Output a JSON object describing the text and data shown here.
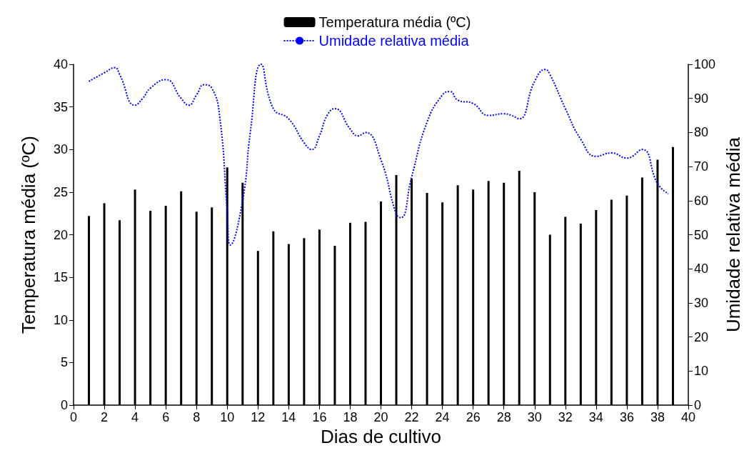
{
  "chart_data": {
    "type": "bar",
    "xlabel": "Dias de cultivo",
    "ylabel": "Temperatura média (ºC)",
    "y2label": "Umidade relativa média",
    "xlim": [
      0,
      40
    ],
    "xticks": [
      0,
      2,
      4,
      6,
      8,
      10,
      12,
      14,
      16,
      18,
      20,
      22,
      24,
      26,
      28,
      30,
      32,
      34,
      36,
      38,
      40
    ],
    "ylim": [
      0,
      40
    ],
    "yticks": [
      0,
      5,
      10,
      15,
      20,
      25,
      30,
      35,
      40
    ],
    "y2lim": [
      0,
      100
    ],
    "y2ticks": [
      0,
      10,
      20,
      30,
      40,
      50,
      60,
      70,
      80,
      90,
      100
    ],
    "legend": "top",
    "grid": false,
    "series": [
      {
        "name": "Temperatura média (ºC)",
        "color": "#000000",
        "x": [
          1,
          2,
          3,
          4,
          5,
          6,
          7,
          8,
          9,
          10,
          11,
          12,
          13,
          14,
          15,
          16,
          17,
          18,
          19,
          20,
          21,
          22,
          23,
          24,
          25,
          26,
          27,
          28,
          29,
          30,
          31,
          32,
          33,
          34,
          35,
          36,
          37,
          38,
          39
        ],
        "values": [
          22.2,
          23.7,
          21.7,
          25.3,
          22.8,
          23.4,
          25.1,
          22.7,
          23.2,
          27.9,
          26.1,
          18.1,
          20.4,
          18.9,
          19.6,
          20.6,
          18.7,
          21.4,
          21.5,
          23.9,
          27,
          26.6,
          24.9,
          23.8,
          25.8,
          25.3,
          26.3,
          26.1,
          27.5,
          25,
          20,
          22.1,
          21.3,
          22.9,
          24.1,
          24.6,
          26.7,
          28.8,
          30.3
        ]
      },
      {
        "name": "Umidade relativa média",
        "type": "line",
        "axis": "y2",
        "color": "#0000ff",
        "line_style": "dotted",
        "marker": "none",
        "x": [
          1,
          2,
          2.7,
          3,
          4,
          4.5,
          5,
          6,
          7,
          7.5,
          8,
          8.5,
          9,
          9.5,
          10,
          10.2,
          11,
          11.5,
          12.2,
          13,
          14,
          15,
          15.5,
          16,
          16.5,
          17,
          18,
          18.5,
          19,
          20,
          21,
          21.3,
          22,
          23,
          24,
          24.5,
          25,
          26,
          27,
          28,
          28.5,
          29,
          30,
          30.7,
          31,
          32,
          33,
          34,
          35,
          36,
          37,
          38,
          38.7
        ],
        "values": [
          95,
          97.5,
          99,
          97,
          88,
          90,
          93,
          95.5,
          90,
          88,
          91,
          94,
          93,
          85,
          57,
          47,
          60,
          80,
          100,
          87,
          84,
          77,
          75,
          79,
          85,
          87,
          81,
          79,
          80,
          72,
          56,
          55,
          67,
          83,
          91,
          92,
          89.5,
          88.5,
          85,
          85.5,
          85,
          84,
          95,
          98.5,
          97,
          87,
          78,
          73,
          74,
          72.5,
          75,
          65,
          62
        ]
      }
    ]
  }
}
